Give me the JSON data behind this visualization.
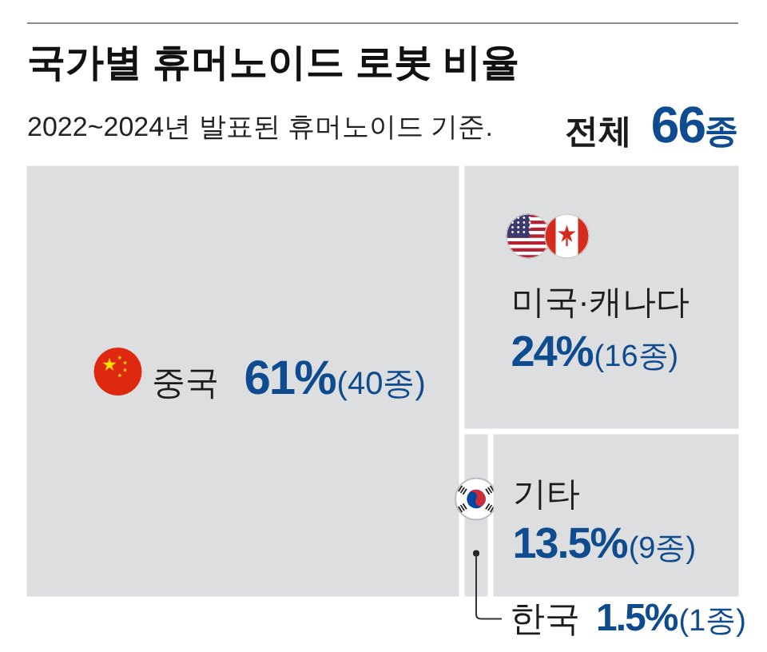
{
  "chart_data": {
    "type": "other",
    "title": "국가별 휴머노이드 로봇 비율",
    "subtitle": "2022~2024년 발표된 휴머노이드 기준.",
    "categories": [
      "중국",
      "미국·캐나다",
      "한국",
      "기타"
    ],
    "values": [
      61,
      24,
      1.5,
      13.5
    ],
    "value_labels": [
      "61%(40종)",
      "24%(16종)",
      "1.5%(1종)",
      "13.5%(9종)"
    ],
    "colors": [
      "#dcdedf",
      "#dcdedf",
      "#dcdedf",
      "#dcdedf"
    ],
    "annotations": [
      "전체 66종"
    ]
  }
}
